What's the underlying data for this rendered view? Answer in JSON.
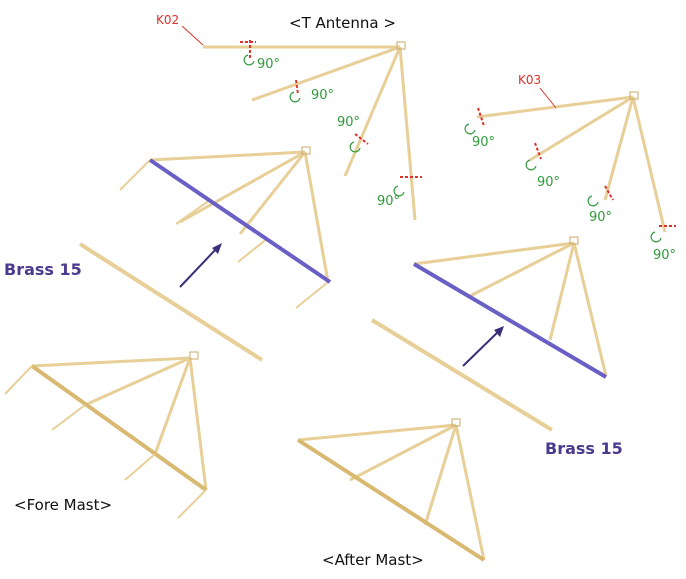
{
  "title": "<T Antenna >",
  "parts": {
    "k02": "K02",
    "k03": "K03"
  },
  "angles": {
    "a1": "90°",
    "a2": "90°",
    "a3": "90°",
    "a4": "90°",
    "b1": "90°",
    "b2": "90°",
    "b3": "90°",
    "b4": "90°"
  },
  "materials": {
    "left": "Brass 15",
    "right": "Brass 15"
  },
  "captions": {
    "fore": "<Fore Mast>",
    "after": "<After Mast>"
  },
  "colors": {
    "wood": "#e7cf97",
    "wood_dark": "#d9b870",
    "brass": "#6a5fc4",
    "marker": "#e0302a",
    "rotate": "#2f9a3a",
    "arrow": "#3b2f7a"
  }
}
